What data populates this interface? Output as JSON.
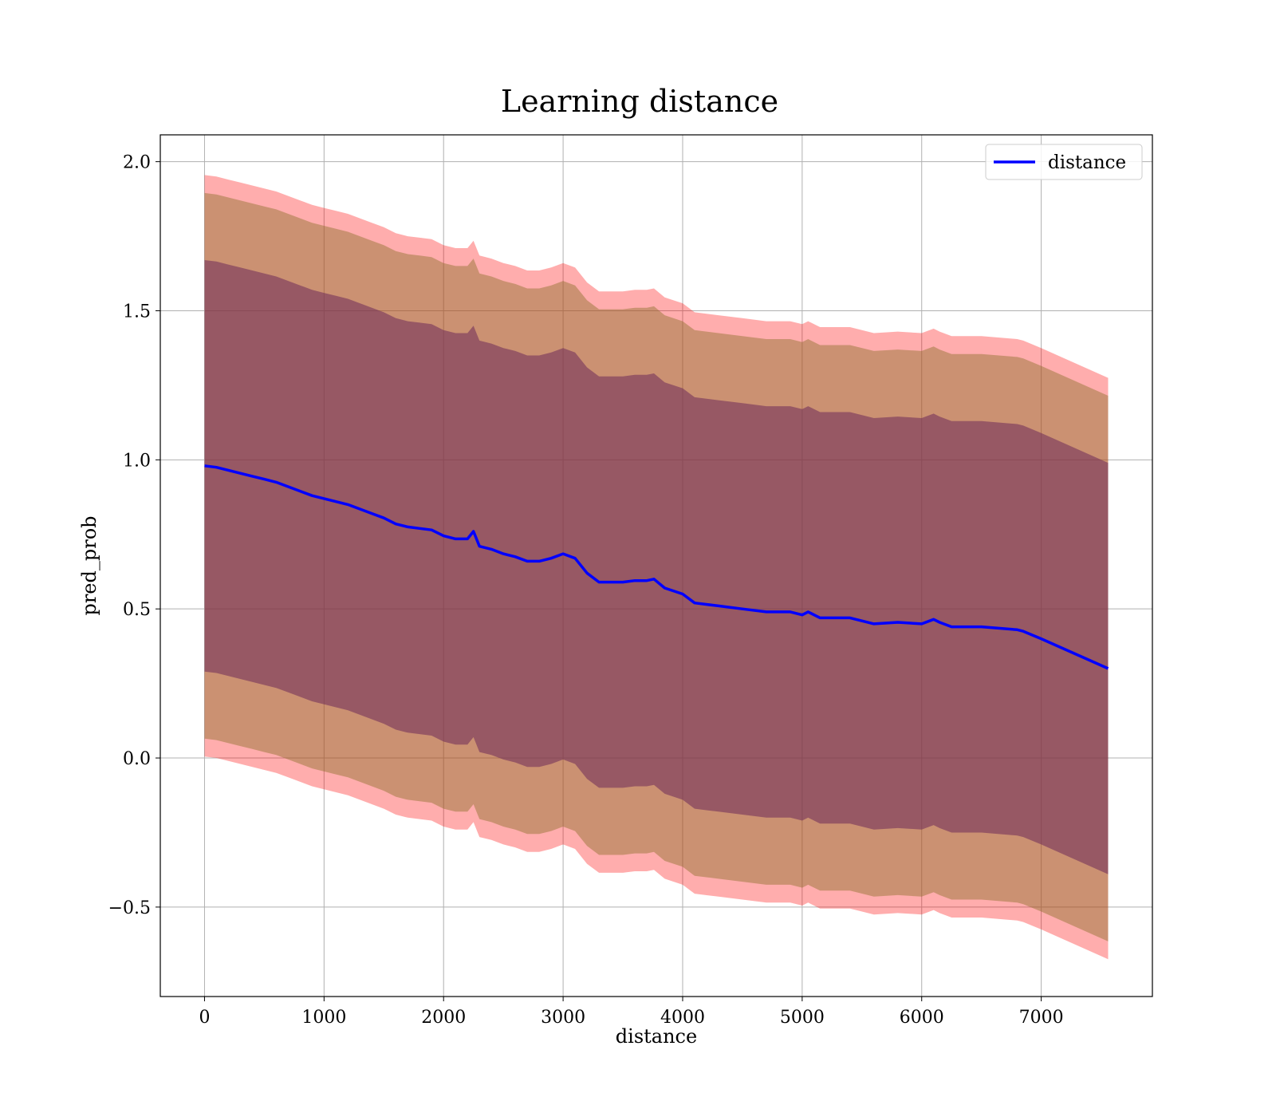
{
  "chart_data": {
    "type": "line",
    "title": "Learning distance",
    "xlabel": "distance",
    "ylabel": "pred_prob",
    "xlim": [
      -370,
      7930
    ],
    "ylim": [
      -0.8,
      2.09
    ],
    "x_ticks": [
      0,
      1000,
      2000,
      3000,
      4000,
      5000,
      6000,
      7000
    ],
    "y_ticks": [
      -0.5,
      0.0,
      0.5,
      1.0,
      1.5,
      2.0
    ],
    "x_tick_labels": [
      "0",
      "1000",
      "2000",
      "3000",
      "4000",
      "5000",
      "6000",
      "7000"
    ],
    "y_tick_labels": [
      "−0.5",
      "0.0",
      "0.5",
      "1.0",
      "1.5",
      "2.0"
    ],
    "grid": true,
    "legend": {
      "position": "top-right",
      "entries": [
        "distance"
      ]
    },
    "colors": {
      "line": "#0000ff",
      "band_outer": "#ff0000",
      "band_middle": "#8b6e2a",
      "band_inner": "#6e2a5a",
      "grid": "#b0b0b0"
    },
    "series": [
      {
        "name": "distance",
        "x": [
          0,
          100,
          200,
          300,
          400,
          500,
          600,
          700,
          800,
          900,
          1000,
          1100,
          1200,
          1300,
          1400,
          1500,
          1600,
          1700,
          1800,
          1900,
          2000,
          2100,
          2200,
          2250,
          2300,
          2400,
          2500,
          2600,
          2700,
          2800,
          2900,
          3000,
          3100,
          3200,
          3300,
          3400,
          3500,
          3600,
          3700,
          3760,
          3850,
          4000,
          4100,
          4300,
          4500,
          4700,
          4900,
          5000,
          5050,
          5150,
          5300,
          5400,
          5600,
          5800,
          6000,
          6100,
          6150,
          6250,
          6500,
          6800,
          6850,
          7000,
          7560
        ],
        "y": [
          0.98,
          0.975,
          0.965,
          0.955,
          0.945,
          0.935,
          0.925,
          0.91,
          0.895,
          0.88,
          0.87,
          0.86,
          0.85,
          0.835,
          0.82,
          0.805,
          0.785,
          0.775,
          0.77,
          0.765,
          0.745,
          0.735,
          0.735,
          0.76,
          0.71,
          0.7,
          0.685,
          0.675,
          0.66,
          0.66,
          0.67,
          0.685,
          0.67,
          0.62,
          0.59,
          0.59,
          0.59,
          0.595,
          0.595,
          0.6,
          0.57,
          0.55,
          0.52,
          0.51,
          0.5,
          0.49,
          0.49,
          0.48,
          0.49,
          0.47,
          0.47,
          0.47,
          0.45,
          0.455,
          0.45,
          0.465,
          0.455,
          0.44,
          0.44,
          0.43,
          0.425,
          0.4,
          0.3
        ]
      }
    ],
    "bands": [
      {
        "level": "outer",
        "upper_offset": 0.975,
        "lower_offset": -0.975
      },
      {
        "level": "middle",
        "upper_offset": 0.915,
        "lower_offset": -0.915
      },
      {
        "level": "inner",
        "upper_offset": 0.69,
        "lower_offset": -0.69
      }
    ]
  }
}
